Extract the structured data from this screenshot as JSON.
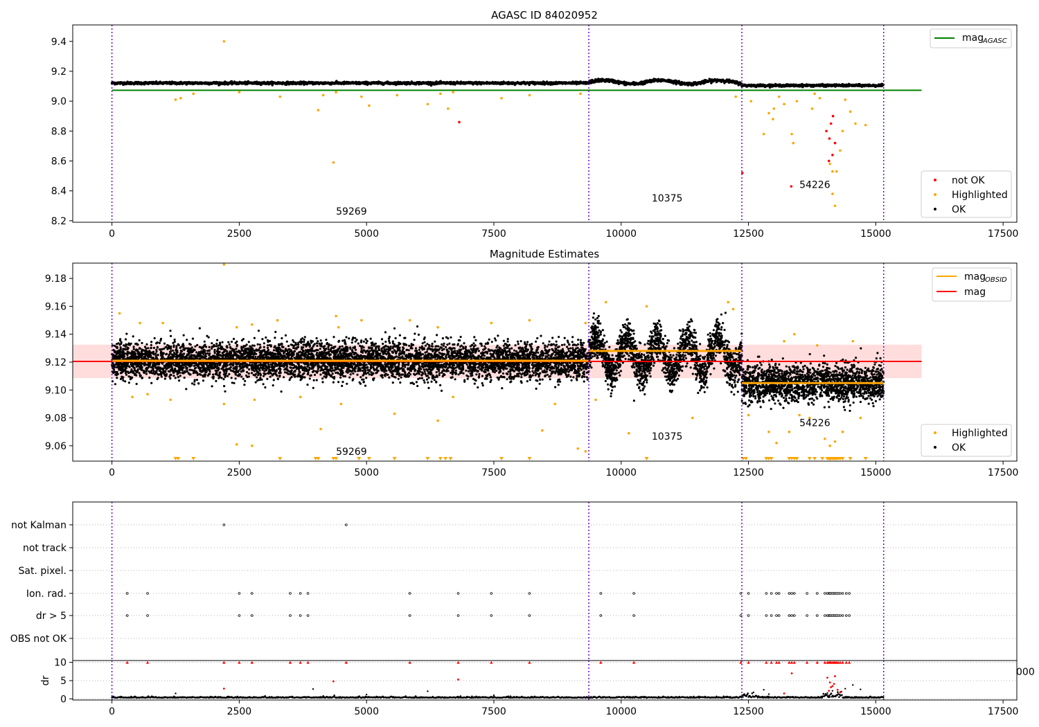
{
  "chart_data": [
    {
      "type": "scatter",
      "title": "AGASC ID 84020952",
      "xlim": [
        -770,
        17770
      ],
      "ylim": [
        8.19,
        9.51
      ],
      "xticks": [
        0,
        2500,
        5000,
        7500,
        10000,
        12500,
        15000,
        17500
      ],
      "xtick_labels": [
        "0",
        "2500",
        "5000",
        "7500",
        "10000",
        "12500",
        "15000",
        "17500"
      ],
      "yticks": [
        8.2,
        8.4,
        8.6,
        8.8,
        9.0,
        9.2,
        9.4
      ],
      "ytick_labels": [
        "8.2",
        "8.4",
        "8.6",
        "8.8",
        "9.0",
        "9.2",
        "9.4"
      ],
      "obsid_boundaries": [
        0,
        9365,
        12370,
        15155
      ],
      "obsid_labels": [
        {
          "text": "59269",
          "x": 4400,
          "y": 8.24
        },
        {
          "text": "10375",
          "x": 10600,
          "y": 8.33
        },
        {
          "text": "54226",
          "x": 13500,
          "y": 8.42
        }
      ],
      "reference_lines": [
        {
          "name": "mag_AGASC",
          "y": 9.073,
          "x0": 0,
          "x1": 15900,
          "color": "#008000"
        }
      ],
      "series": [
        {
          "name": "not OK",
          "color": "#ff0000",
          "points": [
            [
              6820,
              8.86
            ],
            [
              12380,
              8.52
            ],
            [
              13340,
              8.43
            ],
            [
              14080,
              8.6
            ],
            [
              14120,
              8.85
            ],
            [
              14150,
              8.64
            ],
            [
              14200,
              8.72
            ],
            [
              14090,
              8.75
            ],
            [
              14160,
              8.9
            ],
            [
              14030,
              8.8
            ]
          ]
        },
        {
          "name": "Highlighted",
          "color": "#ffa500",
          "points": [
            [
              2200,
              9.4
            ],
            [
              1250,
              9.01
            ],
            [
              1350,
              9.02
            ],
            [
              1600,
              9.05
            ],
            [
              2500,
              9.06
            ],
            [
              3300,
              9.03
            ],
            [
              4050,
              8.94
            ],
            [
              4350,
              8.59
            ],
            [
              4150,
              9.04
            ],
            [
              4400,
              9.06
            ],
            [
              4900,
              9.03
            ],
            [
              5050,
              8.97
            ],
            [
              5600,
              9.04
            ],
            [
              6200,
              8.98
            ],
            [
              6450,
              9.05
            ],
            [
              6600,
              8.95
            ],
            [
              6700,
              9.06
            ],
            [
              7650,
              9.02
            ],
            [
              8200,
              9.04
            ],
            [
              9200,
              9.05
            ],
            [
              12250,
              9.03
            ],
            [
              12550,
              9.0
            ],
            [
              12800,
              8.78
            ],
            [
              12900,
              8.92
            ],
            [
              13000,
              8.95
            ],
            [
              13200,
              8.98
            ],
            [
              13350,
              8.78
            ],
            [
              13380,
              8.72
            ],
            [
              13450,
              9.0
            ],
            [
              13750,
              8.95
            ],
            [
              13900,
              9.02
            ],
            [
              14100,
              8.58
            ],
            [
              14150,
              8.53
            ],
            [
              14230,
              8.53
            ],
            [
              14200,
              8.3
            ],
            [
              14150,
              8.38
            ],
            [
              14300,
              8.67
            ],
            [
              14350,
              8.8
            ],
            [
              14400,
              9.01
            ],
            [
              14500,
              8.93
            ],
            [
              14600,
              8.85
            ],
            [
              14800,
              8.84
            ],
            [
              13100,
              9.03
            ],
            [
              12980,
              8.88
            ],
            [
              13800,
              9.05
            ]
          ]
        },
        {
          "name": "OK",
          "color": "#000000",
          "segments": [
            {
              "x0": 0,
              "x1": 9365,
              "center": 9.121,
              "spread": 0.008
            },
            {
              "x0": 9365,
              "x1": 12370,
              "center": 9.128,
              "spread": 0.01
            },
            {
              "x0": 12370,
              "x1": 15155,
              "center": 9.105,
              "spread": 0.007
            }
          ]
        }
      ],
      "legend_upper": {
        "position": "upper right",
        "entries": [
          {
            "label": "mag",
            "sub": "AGASC",
            "color": "#008000"
          }
        ]
      },
      "legend_lower": {
        "position": "lower right",
        "entries": [
          {
            "label": "not OK",
            "color": "#ff0000"
          },
          {
            "label": "Highlighted",
            "color": "#ffa500"
          },
          {
            "label": "OK",
            "color": "#000000"
          }
        ]
      }
    },
    {
      "type": "scatter",
      "title": "Magnitude Estimates",
      "xlim": [
        -770,
        17770
      ],
      "ylim": [
        9.049,
        9.191
      ],
      "xticks": [
        0,
        2500,
        5000,
        7500,
        10000,
        12500,
        15000,
        17500
      ],
      "xtick_labels": [
        "0",
        "2500",
        "5000",
        "7500",
        "10000",
        "12500",
        "15000",
        "17500"
      ],
      "yticks": [
        9.06,
        9.08,
        9.1,
        9.12,
        9.14,
        9.16,
        9.18
      ],
      "ytick_labels": [
        "9.06",
        "9.08",
        "9.10",
        "9.12",
        "9.14",
        "9.16",
        "9.18"
      ],
      "obsid_boundaries": [
        0,
        9365,
        12370,
        15155
      ],
      "obsid_labels": [
        {
          "text": "59269",
          "x": 4400,
          "y": 9.0535
        },
        {
          "text": "10375",
          "x": 10600,
          "y": 9.0645
        },
        {
          "text": "54226",
          "x": 13500,
          "y": 9.074
        }
      ],
      "mag": {
        "value": 9.1205,
        "band": [
          9.1085,
          9.1325
        ],
        "x0": -770,
        "x1": 15900
      },
      "mag_obsid": [
        {
          "x0": 0,
          "x1": 9365,
          "value": 9.121
        },
        {
          "x0": 9365,
          "x1": 12370,
          "value": 9.128
        },
        {
          "x0": 12370,
          "x1": 15155,
          "value": 9.105
        }
      ],
      "series": [
        {
          "name": "OK",
          "color": "#000000",
          "segments": [
            {
              "x0": 0,
              "x1": 9365,
              "center": 9.121,
              "spread": 0.0065
            },
            {
              "x0": 9365,
              "x1": 12370,
              "center": 9.125,
              "spread": 0.01
            },
            {
              "x0": 12370,
              "x1": 15155,
              "center": 9.105,
              "spread": 0.0065
            }
          ]
        },
        {
          "name": "Highlighted",
          "color": "#ffa500",
          "points": [
            [
              2200,
              9.19
            ],
            [
              150,
              9.155
            ],
            [
              550,
              9.148
            ],
            [
              1000,
              9.148
            ],
            [
              2450,
              9.145
            ],
            [
              2750,
              9.147
            ],
            [
              3250,
              9.15
            ],
            [
              4400,
              9.153
            ],
            [
              4450,
              9.145
            ],
            [
              4900,
              9.15
            ],
            [
              5850,
              9.15
            ],
            [
              6400,
              9.145
            ],
            [
              7450,
              9.148
            ],
            [
              8200,
              9.15
            ],
            [
              9300,
              9.148
            ],
            [
              9700,
              9.163
            ],
            [
              10500,
              9.16
            ],
            [
              12100,
              9.163
            ],
            [
              12200,
              9.158
            ],
            [
              13200,
              9.135
            ],
            [
              13400,
              9.14
            ],
            [
              14550,
              9.135
            ],
            [
              13850,
              9.132
            ],
            [
              400,
              9.095
            ],
            [
              700,
              9.097
            ],
            [
              1150,
              9.093
            ],
            [
              2200,
              9.09
            ],
            [
              2450,
              9.061
            ],
            [
              2750,
              9.06
            ],
            [
              2800,
              9.093
            ],
            [
              3700,
              9.095
            ],
            [
              4100,
              9.072
            ],
            [
              4500,
              9.09
            ],
            [
              5550,
              9.083
            ],
            [
              6400,
              9.078
            ],
            [
              6700,
              9.095
            ],
            [
              8450,
              9.071
            ],
            [
              8700,
              9.09
            ],
            [
              9150,
              9.058
            ],
            [
              9300,
              9.056
            ],
            [
              9500,
              9.093
            ],
            [
              10150,
              9.069
            ],
            [
              11400,
              9.08
            ],
            [
              12500,
              9.082
            ],
            [
              12900,
              9.07
            ],
            [
              13050,
              9.062
            ],
            [
              13300,
              9.07
            ],
            [
              13700,
              9.08
            ],
            [
              14000,
              9.065
            ],
            [
              14100,
              9.06
            ],
            [
              14200,
              9.063
            ],
            [
              14350,
              9.07
            ],
            [
              14700,
              9.08
            ],
            [
              13500,
              9.082
            ]
          ]
        },
        {
          "name": "Highlighted (off-scale)",
          "color": "#ffa500",
          "marker": "triangle-down",
          "y": 9.0505,
          "x": [
            1250,
            1300,
            1600,
            3300,
            4000,
            4050,
            4350,
            4400,
            4850,
            5050,
            5550,
            6200,
            6450,
            6550,
            6650,
            7650,
            8200,
            10500,
            12400,
            12450,
            12850,
            12900,
            12950,
            13300,
            13350,
            13400,
            13450,
            13700,
            13800,
            13950,
            14050,
            14080,
            14100,
            14120,
            14150,
            14180,
            14200,
            14230,
            14260,
            14300,
            14350,
            14500,
            14800
          ]
        }
      ],
      "legend_upper": {
        "position": "upper right",
        "entries": [
          {
            "label": "mag",
            "sub": "OBSID",
            "color": "#ffa500"
          },
          {
            "label": "mag",
            "sub": "",
            "color": "#ff0000"
          }
        ]
      },
      "legend_lower": {
        "position": "lower right",
        "entries": [
          {
            "label": "Highlighted",
            "color": "#ffa500"
          },
          {
            "label": "OK",
            "color": "#000000"
          }
        ]
      }
    },
    {
      "type": "scatter",
      "title": "",
      "xlim": [
        -770,
        17770
      ],
      "categories": [
        "not Kalman",
        "not track",
        "Sat. pixel.",
        "Ion. rad.",
        "dr > 5",
        "OBS not OK"
      ],
      "flag_points": {
        "not Kalman": [
          2200,
          4600
        ],
        "not track": [],
        "Sat. pixel.": [],
        "Ion. rad.": [
          300,
          700,
          2500,
          2750,
          3500,
          3700,
          3850,
          5850,
          6800,
          7450,
          8200,
          9600,
          10250,
          12350,
          12500,
          12850,
          12950,
          13050,
          13100,
          13300,
          13350,
          13400,
          13650,
          13850,
          14000,
          14050,
          14080,
          14100,
          14120,
          14150,
          14180,
          14200,
          14230,
          14260,
          14300,
          14350,
          14420,
          14480
        ],
        "dr > 5": [
          300,
          700,
          2500,
          2750,
          3500,
          3700,
          3850,
          5850,
          6800,
          7450,
          8200,
          9600,
          10250,
          12350,
          12500,
          12850,
          12950,
          13050,
          13100,
          13300,
          13350,
          13400,
          13650,
          13850,
          14000,
          14050,
          14080,
          14100,
          14120,
          14150,
          14180,
          14200,
          14230,
          14260,
          14300,
          14350,
          14420,
          14480
        ],
        "OBS not OK": []
      },
      "dr": {
        "ylabel": "dr",
        "ylim": [
          -0.3,
          10.5
        ],
        "yticks": [
          0,
          5,
          10
        ],
        "ytick_labels": [
          "0",
          "5",
          "10"
        ],
        "clipped_value": 10,
        "clipped_x": [
          300,
          700,
          2200,
          2500,
          2750,
          3500,
          3700,
          3850,
          4600,
          5850,
          6800,
          7450,
          8200,
          9600,
          10250,
          12350,
          12500,
          12850,
          12950,
          13050,
          13100,
          13300,
          13350,
          13400,
          13650,
          13850,
          14000,
          14050,
          14080,
          14100,
          14120,
          14150,
          14180,
          14200,
          14230,
          14260,
          14300,
          14350,
          14420,
          14480
        ],
        "red_points": [
          [
            2200,
            2.8
          ],
          [
            4350,
            4.8
          ],
          [
            6800,
            5.3
          ],
          [
            13350,
            7.0
          ],
          [
            13200,
            1.5
          ],
          [
            14100,
            4.5
          ],
          [
            14150,
            3.5
          ],
          [
            14200,
            6.2
          ],
          [
            14050,
            5.8
          ],
          [
            14250,
            2.5
          ],
          [
            14120,
            3.2
          ],
          [
            14180,
            4.1
          ],
          [
            14300,
            1.8
          ],
          [
            14080,
            2.2
          ]
        ],
        "ok_baseline": 0.3,
        "ok_scatter_points": [
          [
            1250,
            1.5
          ],
          [
            3950,
            2.7
          ],
          [
            4150,
            0.8
          ],
          [
            5000,
            1.2
          ],
          [
            6200,
            2.1
          ],
          [
            7500,
            1.0
          ],
          [
            12600,
            1.8
          ],
          [
            12800,
            2.5
          ],
          [
            12900,
            1.3
          ],
          [
            14050,
            1.6
          ],
          [
            14150,
            2.2
          ],
          [
            14250,
            1.2
          ],
          [
            14400,
            2.8
          ],
          [
            14700,
            2.6
          ],
          [
            14550,
            3.8
          ]
        ]
      },
      "stray_tick_label": "000"
    }
  ]
}
